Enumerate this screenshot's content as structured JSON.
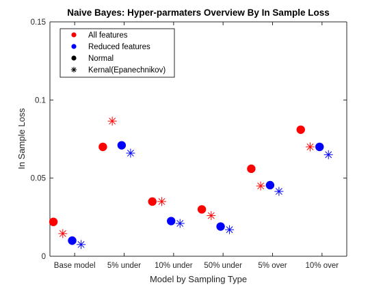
{
  "chart_data": {
    "type": "scatter",
    "title": "Naive Bayes: Hyper-parmaters Overview By In Sample Loss",
    "xlabel": "Model by Sampling Type",
    "ylabel": "In Sample Loss",
    "ylim": [
      0,
      0.15
    ],
    "yticks": [
      "0",
      "0.05",
      "0.1",
      "0.15"
    ],
    "categories": [
      "Base model",
      "5% under",
      "10% under",
      "50% under",
      "5% over",
      "10% over"
    ],
    "legend": {
      "position": "top-left",
      "entries": [
        {
          "label": "All features",
          "marker": "circle",
          "color": "#ff0000"
        },
        {
          "label": "Reduced features",
          "marker": "circle",
          "color": "#0000ff"
        },
        {
          "label": "Normal",
          "marker": "circle",
          "color": "#000000"
        },
        {
          "label": "Kernal(Epanechnikov)",
          "marker": "star",
          "color": "#000000"
        }
      ]
    },
    "series": [
      {
        "name": "All features",
        "marker": "circle",
        "color": "#ff0000",
        "values": [
          0.022,
          0.07,
          0.035,
          0.03,
          0.056,
          0.081
        ]
      },
      {
        "marker": "star",
        "color": "#ff0000",
        "values": [
          0.0145,
          0.0865,
          0.035,
          0.026,
          0.045,
          0.07
        ]
      },
      {
        "name": "Reduced features",
        "marker": "circle",
        "color": "#0000ff",
        "values": [
          0.01,
          0.071,
          0.0225,
          0.019,
          0.0455,
          0.07
        ]
      },
      {
        "marker": "star",
        "color": "#0000ff",
        "values": [
          0.0075,
          0.066,
          0.021,
          0.017,
          0.0415,
          0.065
        ]
      }
    ],
    "grid": false
  }
}
